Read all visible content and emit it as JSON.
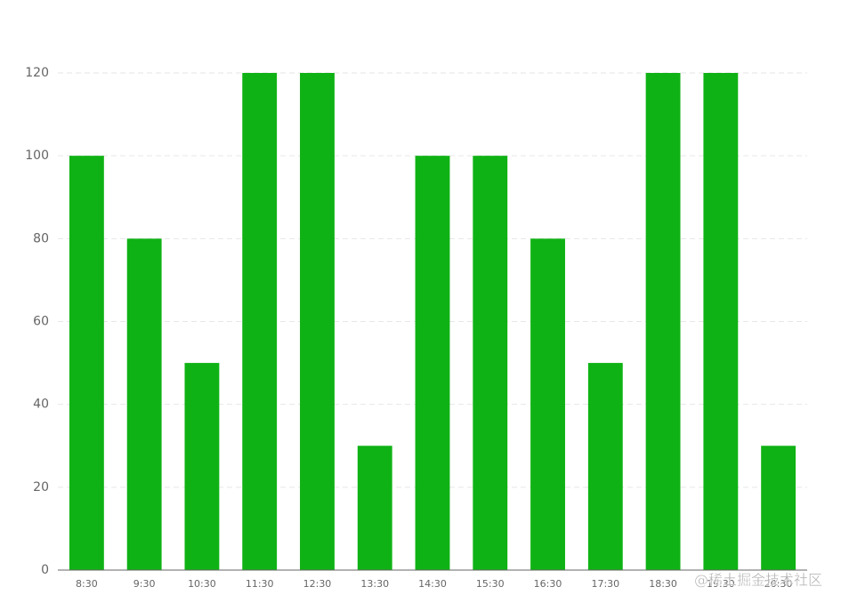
{
  "chart_data": {
    "type": "bar",
    "categories": [
      "8:30",
      "9:30",
      "10:30",
      "11:30",
      "12:30",
      "13:30",
      "14:30",
      "15:30",
      "16:30",
      "17:30",
      "18:30",
      "19:30",
      "20:30"
    ],
    "values": [
      100,
      80,
      50,
      120,
      120,
      30,
      100,
      100,
      80,
      50,
      120,
      120,
      30
    ],
    "color": "#0fb214",
    "ylim": [
      0,
      120
    ],
    "yticks": [
      0,
      20,
      40,
      60,
      80,
      100,
      120
    ],
    "grid": true,
    "watermark": "@稀土掘金技术社区"
  }
}
